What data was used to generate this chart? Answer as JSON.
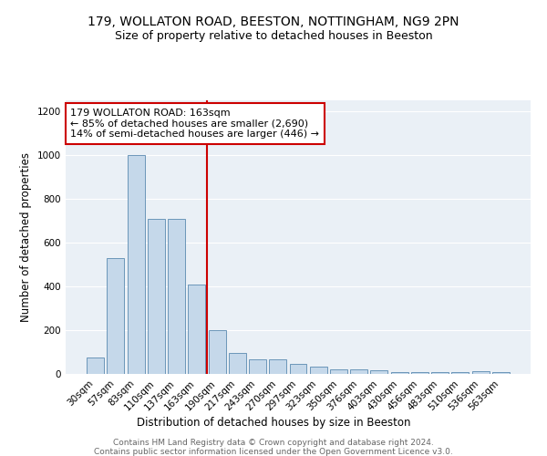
{
  "title1": "179, WOLLATON ROAD, BEESTON, NOTTINGHAM, NG9 2PN",
  "title2": "Size of property relative to detached houses in Beeston",
  "xlabel": "Distribution of detached houses by size in Beeston",
  "ylabel": "Number of detached properties",
  "categories": [
    "30sqm",
    "57sqm",
    "83sqm",
    "110sqm",
    "137sqm",
    "163sqm",
    "190sqm",
    "217sqm",
    "243sqm",
    "270sqm",
    "297sqm",
    "323sqm",
    "350sqm",
    "376sqm",
    "403sqm",
    "430sqm",
    "456sqm",
    "483sqm",
    "510sqm",
    "536sqm",
    "563sqm"
  ],
  "values": [
    75,
    530,
    1000,
    710,
    710,
    410,
    200,
    95,
    65,
    65,
    45,
    35,
    20,
    20,
    15,
    10,
    8,
    8,
    8,
    12,
    8
  ],
  "bar_color": "#c5d8ea",
  "bar_edge_color": "#5a8ab0",
  "vline_x": 5.5,
  "vline_color": "#cc0000",
  "annotation_text": "179 WOLLATON ROAD: 163sqm\n← 85% of detached houses are smaller (2,690)\n14% of semi-detached houses are larger (446) →",
  "annotation_box_color": "#ffffff",
  "annotation_box_edge": "#cc0000",
  "ylim": [
    0,
    1250
  ],
  "yticks": [
    0,
    200,
    400,
    600,
    800,
    1000,
    1200
  ],
  "background_color": "#eaf0f6",
  "footer1": "Contains HM Land Registry data © Crown copyright and database right 2024.",
  "footer2": "Contains public sector information licensed under the Open Government Licence v3.0.",
  "title1_fontsize": 10,
  "title2_fontsize": 9,
  "xlabel_fontsize": 8.5,
  "ylabel_fontsize": 8.5,
  "tick_fontsize": 7.5,
  "annotation_fontsize": 8,
  "footer_fontsize": 6.5
}
